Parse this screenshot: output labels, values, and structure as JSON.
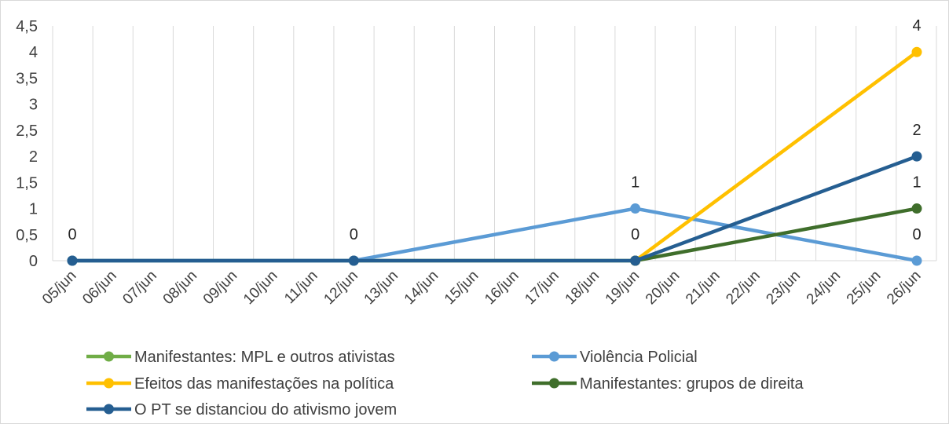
{
  "chart_data": {
    "type": "line",
    "title": "",
    "xlabel": "",
    "ylabel": "",
    "categories": [
      "05/jun",
      "06/jun",
      "07/jun",
      "08/jun",
      "09/jun",
      "10/jun",
      "11/jun",
      "12/jun",
      "13/jun",
      "14/jun",
      "15/jun",
      "16/jun",
      "17/jun",
      "18/jun",
      "19/jun",
      "20/jun",
      "21/jun",
      "22/jun",
      "23/jun",
      "24/jun",
      "25/jun",
      "26/jun"
    ],
    "ylim": [
      0,
      4.5
    ],
    "y_ticks": [
      {
        "value": 0,
        "label": "0"
      },
      {
        "value": 0.5,
        "label": "0,5"
      },
      {
        "value": 1,
        "label": "1"
      },
      {
        "value": 1.5,
        "label": "1,5"
      },
      {
        "value": 2,
        "label": "2"
      },
      {
        "value": 2.5,
        "label": "2,5"
      },
      {
        "value": 3,
        "label": "3"
      },
      {
        "value": 3.5,
        "label": "3,5"
      },
      {
        "value": 4,
        "label": "4"
      },
      {
        "value": 4.5,
        "label": "4,5"
      }
    ],
    "grid": "vertical",
    "legend_position": "bottom",
    "series": [
      {
        "name": "Manifestantes: MPL e outros ativistas",
        "color": "#70AD47",
        "points": [
          {
            "x": "05/jun",
            "y": 0
          },
          {
            "x": "12/jun",
            "y": 0
          },
          {
            "x": "19/jun",
            "y": 0
          }
        ]
      },
      {
        "name": "Violência Policial",
        "color": "#5B9BD5",
        "points": [
          {
            "x": "05/jun",
            "y": 0
          },
          {
            "x": "12/jun",
            "y": 0
          },
          {
            "x": "19/jun",
            "y": 1
          },
          {
            "x": "26/jun",
            "y": 0
          }
        ]
      },
      {
        "name": "Efeitos das manifestações na política",
        "color": "#FFC000",
        "points": [
          {
            "x": "19/jun",
            "y": 0
          },
          {
            "x": "26/jun",
            "y": 4
          }
        ]
      },
      {
        "name": "Manifestantes: grupos de direita",
        "color": "#3F6E2B",
        "points": [
          {
            "x": "19/jun",
            "y": 0
          },
          {
            "x": "26/jun",
            "y": 1
          }
        ]
      },
      {
        "name": "O PT se distanciou do ativismo jovem",
        "color": "#255E91",
        "points": [
          {
            "x": "05/jun",
            "y": 0
          },
          {
            "x": "12/jun",
            "y": 0
          },
          {
            "x": "19/jun",
            "y": 0
          },
          {
            "x": "26/jun",
            "y": 2
          }
        ]
      }
    ],
    "data_labels": [
      {
        "x": "05/jun",
        "y": 0,
        "text": "0"
      },
      {
        "x": "12/jun",
        "y": 0,
        "text": "0"
      },
      {
        "x": "19/jun",
        "y": 1,
        "text": "1"
      },
      {
        "x": "19/jun",
        "y": 0,
        "text": "0"
      },
      {
        "x": "26/jun",
        "y": 4,
        "text": "4"
      },
      {
        "x": "26/jun",
        "y": 2,
        "text": "2"
      },
      {
        "x": "26/jun",
        "y": 1,
        "text": "1"
      },
      {
        "x": "26/jun",
        "y": 0,
        "text": "0"
      }
    ]
  }
}
